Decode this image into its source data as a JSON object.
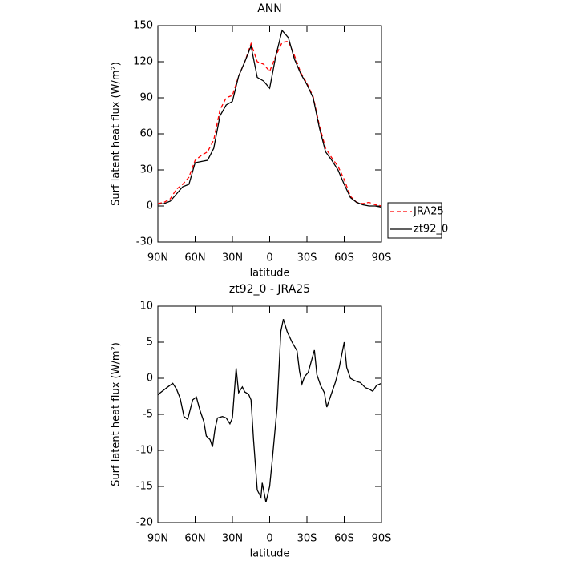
{
  "chart_data": [
    {
      "type": "line",
      "title": "ANN",
      "xlabel": "latitude",
      "ylabel": "Surf latent heat flux (W/m²)",
      "x": [
        90,
        85,
        80,
        75,
        70,
        65,
        60,
        55,
        50,
        45,
        40,
        35,
        30,
        25,
        20,
        15,
        10,
        5,
        0,
        -5,
        -10,
        -15,
        -20,
        -25,
        -30,
        -35,
        -40,
        -45,
        -50,
        -55,
        -60,
        -65,
        -70,
        -75,
        -80,
        -85,
        -90
      ],
      "series": [
        {
          "name": "JRA25",
          "color": "#ff0000",
          "dash": "dashed",
          "values": [
            2,
            3,
            6,
            14,
            18,
            24,
            38,
            42,
            45,
            55,
            80,
            90,
            92,
            108,
            120,
            135,
            120,
            118,
            112,
            125,
            136,
            137,
            125,
            111,
            102,
            91,
            67,
            48,
            40,
            33,
            22,
            8,
            3,
            2,
            3,
            1,
            0
          ]
        },
        {
          "name": "zt92_0",
          "color": "#000000",
          "dash": "solid",
          "values": [
            1.5,
            2,
            4,
            10,
            16,
            18,
            36,
            37,
            38,
            48,
            75,
            84,
            87,
            108,
            120,
            133,
            107,
            104,
            98,
            125,
            146,
            140,
            122,
            110,
            101,
            90,
            65,
            45,
            38,
            30,
            18,
            7,
            3,
            1,
            0,
            0,
            -1
          ]
        }
      ],
      "xlim": [
        90,
        -90
      ],
      "xticks": [
        {
          "value": 90,
          "label": "90N"
        },
        {
          "value": 60,
          "label": "60N"
        },
        {
          "value": 30,
          "label": "30N"
        },
        0,
        {
          "value": -30,
          "label": "30S"
        },
        {
          "value": -60,
          "label": "60S"
        },
        {
          "value": -90,
          "label": "90S"
        }
      ],
      "ylim": [
        -30,
        150
      ],
      "yticks": [
        -30,
        0,
        30,
        60,
        90,
        120,
        150
      ],
      "legend": "right"
    },
    {
      "type": "line",
      "title": "zt92_0 - JRA25",
      "xlabel": "latitude",
      "ylabel": "Surf latent heat flux (W/m²)",
      "x": [
        90,
        88,
        82,
        78,
        75,
        72,
        69,
        66,
        62,
        59,
        56,
        53,
        51,
        48,
        46,
        44,
        42,
        38,
        35,
        32,
        30,
        27,
        25,
        22,
        20,
        17,
        15,
        13,
        10,
        7,
        6,
        3,
        0,
        -2,
        -6,
        -9,
        -11,
        -14,
        -18,
        -22,
        -24,
        -26,
        -28,
        -31,
        -36,
        -38,
        -41,
        -44,
        -46,
        -49,
        -53,
        -56,
        -60,
        -62,
        -65,
        -68,
        -71,
        -73,
        -77,
        -80,
        -83,
        -86,
        -90
      ],
      "values": [
        -2.3,
        -2,
        -1.2,
        -0.7,
        -1.5,
        -2.8,
        -5.3,
        -5.7,
        -3,
        -2.6,
        -4.5,
        -6,
        -8,
        -8.5,
        -9.5,
        -7,
        -5.5,
        -5.3,
        -5.5,
        -6.3,
        -5.5,
        1.4,
        -2,
        -1.2,
        -1.9,
        -2.2,
        -3,
        -8.5,
        -15.5,
        -16.5,
        -14.5,
        -17.2,
        -15,
        -11.5,
        -4,
        6.5,
        8.2,
        6.5,
        5,
        3.8,
        1,
        -0.8,
        0.2,
        0.8,
        3.9,
        0.5,
        -1,
        -2,
        -4,
        -2.5,
        -0.5,
        1.5,
        5,
        1.5,
        0,
        -0.3,
        -0.5,
        -0.6,
        -1.3,
        -1.5,
        -1.8,
        -1,
        -0.7
      ],
      "color": "#000000",
      "xlim": [
        90,
        -90
      ],
      "xticks": [
        {
          "value": 90,
          "label": "90N"
        },
        {
          "value": 60,
          "label": "60N"
        },
        {
          "value": 30,
          "label": "30N"
        },
        0,
        {
          "value": -30,
          "label": "30S"
        },
        {
          "value": -60,
          "label": "60S"
        },
        {
          "value": -90,
          "label": "90S"
        }
      ],
      "ylim": [
        -20,
        10
      ],
      "yticks": [
        -20,
        -15,
        -10,
        -5,
        0,
        5,
        10
      ]
    }
  ]
}
